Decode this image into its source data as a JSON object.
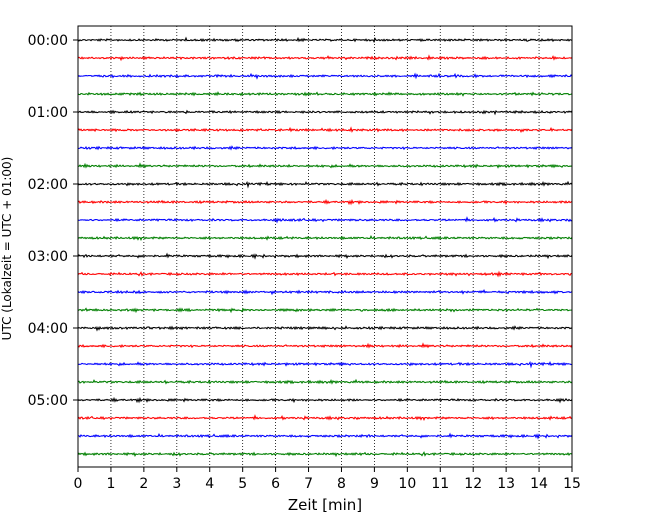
{
  "chart_data": {
    "type": "line",
    "subtype": "helicorder-seismogram",
    "xlabel": "Zeit  [min]",
    "ylabel": "UTC (Lokalzeit = UTC + 01:00)",
    "xlim": [
      0,
      15
    ],
    "x_ticks": [
      0,
      1,
      2,
      3,
      4,
      5,
      6,
      7,
      8,
      9,
      10,
      11,
      12,
      13,
      14,
      15
    ],
    "x_tick_labels": [
      "0",
      "1",
      "2",
      "3",
      "4",
      "5",
      "6",
      "7",
      "8",
      "9",
      "10",
      "11",
      "12",
      "13",
      "14",
      "15"
    ],
    "y_tick_labels": [
      "00:00",
      "01:00",
      "02:00",
      "03:00",
      "04:00",
      "05:00"
    ],
    "traces_per_hour": 4,
    "trace_count": 24,
    "trace_colors": [
      "#000000",
      "#ff0000",
      "#0000ff",
      "#007f00"
    ],
    "vertical_grid": "dotted",
    "grid_color": "#000000"
  }
}
